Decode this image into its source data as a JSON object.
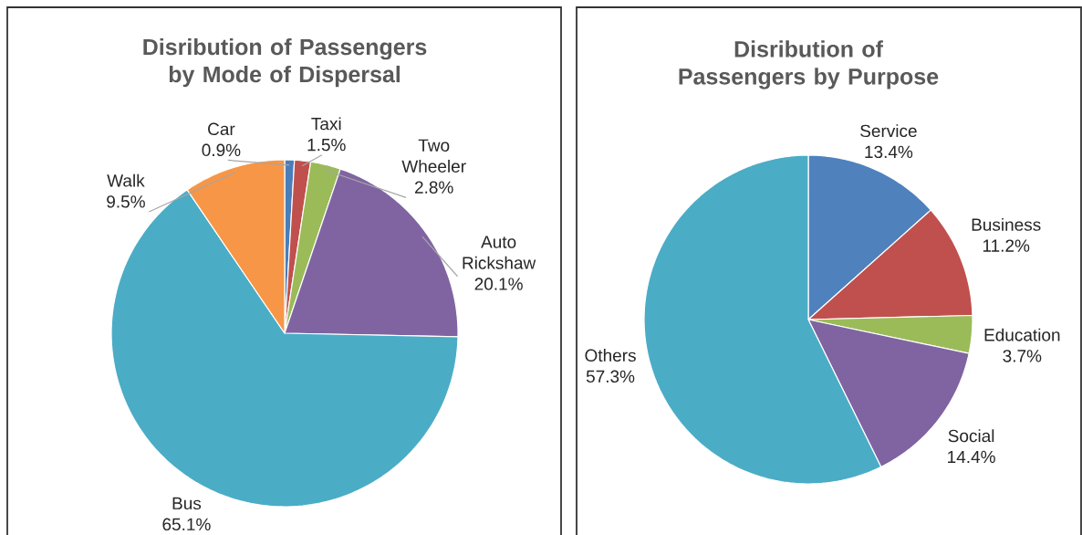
{
  "chart_data": [
    {
      "type": "pie",
      "title": "Disribution of Passengers by Mode of Dispersal",
      "categories": [
        "Car",
        "Taxi",
        "Two Wheeler",
        "Auto Rickshaw",
        "Bus",
        "Walk"
      ],
      "values": [
        0.9,
        1.5,
        2.8,
        20.1,
        65.1,
        9.5
      ],
      "colors": [
        "#4a7ebb",
        "#c0504d",
        "#9bbb59",
        "#8064a2",
        "#4bacc6",
        "#f79646"
      ],
      "value_labels": [
        "0.9%",
        "1.5%",
        "2.8%",
        "20.1%",
        "65.1%",
        "9.5%"
      ]
    },
    {
      "type": "pie",
      "title": "Disribution of Passengers by Purpose",
      "categories": [
        "Service",
        "Business",
        "Education",
        "Social",
        "Others"
      ],
      "values": [
        13.4,
        11.2,
        3.7,
        14.4,
        57.3
      ],
      "colors": [
        "#4f81bd",
        "#c0504d",
        "#9bbb59",
        "#8064a2",
        "#4bacc6"
      ],
      "value_labels": [
        "13.4%",
        "11.2%",
        "3.7%",
        "14.4%",
        "57.3%"
      ]
    }
  ]
}
